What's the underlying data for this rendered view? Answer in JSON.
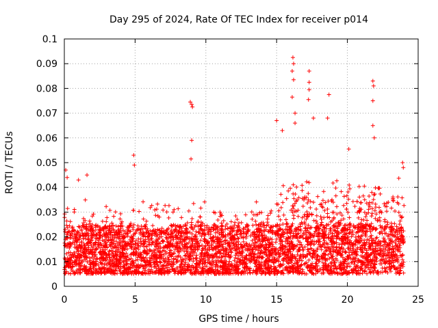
{
  "chart_data": {
    "type": "scatter",
    "title": "Day 295 of 2024, Rate Of TEC Index for receiver p014",
    "xlabel": "GPS time / hours",
    "ylabel": "ROTI / TECUs",
    "xlim": [
      0,
      25
    ],
    "ylim": [
      0,
      0.1
    ],
    "grid": true,
    "marker": "+",
    "xticks": [
      0,
      5,
      10,
      15,
      20,
      25
    ],
    "xtick_labels": [
      "0",
      "5",
      "10",
      "15",
      "20",
      "25"
    ],
    "yticks": [
      0,
      0.01,
      0.02,
      0.03,
      0.04,
      0.05,
      0.06,
      0.07,
      0.08,
      0.09,
      0.1
    ],
    "ytick_labels": [
      "0",
      "0.01",
      "0.02",
      "0.03",
      "0.04",
      "0.05",
      "0.06",
      "0.07",
      "0.08",
      "0.09",
      "0.1"
    ],
    "series": [
      {
        "name": "ROTI",
        "color": "#ff0000",
        "x_range": [
          0,
          24
        ],
        "typical_range": [
          0.005,
          0.025
        ],
        "notable_points": [
          {
            "x": 0.1,
            "y": 0.047
          },
          {
            "x": 0.2,
            "y": 0.044
          },
          {
            "x": 1.0,
            "y": 0.043
          },
          {
            "x": 1.6,
            "y": 0.045
          },
          {
            "x": 4.9,
            "y": 0.053
          },
          {
            "x": 4.95,
            "y": 0.049
          },
          {
            "x": 8.9,
            "y": 0.0745
          },
          {
            "x": 9.0,
            "y": 0.0735
          },
          {
            "x": 9.05,
            "y": 0.0725
          },
          {
            "x": 9.0,
            "y": 0.059
          },
          {
            "x": 8.95,
            "y": 0.0515
          },
          {
            "x": 15.0,
            "y": 0.067
          },
          {
            "x": 15.4,
            "y": 0.063
          },
          {
            "x": 16.15,
            "y": 0.0925
          },
          {
            "x": 16.2,
            "y": 0.09
          },
          {
            "x": 16.1,
            "y": 0.087
          },
          {
            "x": 16.2,
            "y": 0.0835
          },
          {
            "x": 16.1,
            "y": 0.0765
          },
          {
            "x": 16.3,
            "y": 0.07
          },
          {
            "x": 16.3,
            "y": 0.066
          },
          {
            "x": 17.3,
            "y": 0.087
          },
          {
            "x": 17.3,
            "y": 0.0825
          },
          {
            "x": 17.3,
            "y": 0.0795
          },
          {
            "x": 17.25,
            "y": 0.0755
          },
          {
            "x": 17.6,
            "y": 0.068
          },
          {
            "x": 18.7,
            "y": 0.0775
          },
          {
            "x": 18.6,
            "y": 0.068
          },
          {
            "x": 20.1,
            "y": 0.0555
          },
          {
            "x": 21.8,
            "y": 0.083
          },
          {
            "x": 21.85,
            "y": 0.081
          },
          {
            "x": 21.8,
            "y": 0.075
          },
          {
            "x": 21.8,
            "y": 0.065
          },
          {
            "x": 21.9,
            "y": 0.06
          },
          {
            "x": 23.9,
            "y": 0.05
          },
          {
            "x": 23.95,
            "y": 0.048
          }
        ]
      }
    ]
  }
}
